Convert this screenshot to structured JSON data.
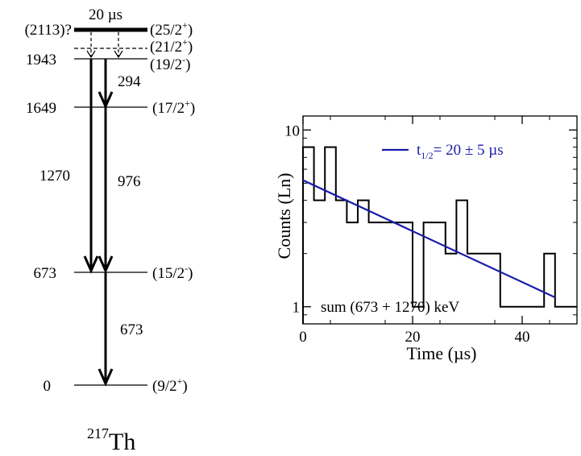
{
  "level_scheme": {
    "isomer_label": "20 µs",
    "levels": [
      {
        "energy": "(2113)?",
        "spin": "(25/2",
        "parity": "+",
        "close": ")",
        "style": "thick"
      },
      {
        "energy": "",
        "spin": "(21/2",
        "parity": "+",
        "close": ")",
        "style": "dashed"
      },
      {
        "energy": "1943",
        "spin": "(19/2",
        "parity": "-",
        "close": ")",
        "style": "solid"
      },
      {
        "energy": "1649",
        "spin": "(17/2",
        "parity": "+",
        "close": ")",
        "style": "solid"
      },
      {
        "energy": "673",
        "spin": "(15/2",
        "parity": "-",
        "close": ")",
        "style": "solid"
      },
      {
        "energy": "0",
        "spin": "(9/2",
        "parity": "+",
        "close": ")",
        "style": "solid"
      }
    ],
    "transitions": [
      {
        "label": "294",
        "from": "1943",
        "to": "1649"
      },
      {
        "label": "1270",
        "from": "1943",
        "to": "673"
      },
      {
        "label": "976",
        "from": "1649",
        "to": "673"
      },
      {
        "label": "673",
        "from": "673",
        "to": "0"
      }
    ],
    "nucleus": {
      "mass": "217",
      "symbol": "Th"
    }
  },
  "chart_data": {
    "type": "line",
    "ylabel": "Counts (Ln)",
    "xlabel": "Time (µs)",
    "y_scale": "log",
    "xlim": [
      0,
      50
    ],
    "ylim": [
      0.8,
      12
    ],
    "xticks": [
      "0",
      "20",
      "40"
    ],
    "xtick_values": [
      0,
      20,
      40
    ],
    "yticks": [
      "1",
      "10"
    ],
    "ytick_values": [
      1,
      10
    ],
    "histogram": {
      "bin_edges": [
        0,
        2,
        4,
        6,
        8,
        10,
        12,
        14,
        16,
        18,
        20,
        22,
        24,
        26,
        28,
        30,
        32,
        34,
        36,
        38,
        40,
        42,
        44,
        46,
        48,
        50
      ],
      "counts": [
        8,
        4,
        8,
        4,
        3,
        4,
        3,
        3,
        3,
        3,
        1,
        3,
        3,
        2,
        4,
        2,
        2,
        2,
        1,
        1,
        1,
        1,
        2,
        1,
        1
      ],
      "color": "#000000"
    },
    "fit": {
      "x": [
        0,
        46
      ],
      "y": [
        5.2,
        1.13
      ],
      "color": "#1a1aaa",
      "legend": "t1/2= 20 ± 5 µs"
    },
    "legend_parts": {
      "t": "t",
      "sub": "1/2",
      "rest": "= 20 ± 5 µs"
    },
    "annotation": "sum (673 + 1270) keV"
  }
}
